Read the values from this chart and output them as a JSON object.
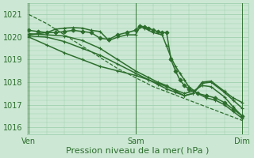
{
  "bg_color": "#cce8d4",
  "grid_color": "#99ccaa",
  "line_color": "#2d6e2d",
  "xlabel": "Pression niveau de la mer( hPa )",
  "xlabel_fontsize": 8,
  "tick_fontsize": 7,
  "yticks": [
    1016,
    1017,
    1018,
    1019,
    1020,
    1021
  ],
  "ylim": [
    1015.7,
    1021.5
  ],
  "xtick_labels": [
    "Ven",
    "Sam",
    "Dim"
  ],
  "xtick_positions": [
    0,
    48,
    96
  ],
  "xlim": [
    -1,
    99
  ],
  "vlines": [
    0,
    48,
    96
  ],
  "series": [
    {
      "x": [
        0,
        8,
        16,
        24,
        32,
        40,
        48,
        56,
        64,
        72,
        80,
        88,
        96
      ],
      "y": [
        1021.0,
        1020.6,
        1020.1,
        1019.6,
        1019.1,
        1018.6,
        1018.2,
        1017.8,
        1017.5,
        1017.2,
        1016.9,
        1016.6,
        1016.3
      ],
      "style": "--",
      "marker": null,
      "lw": 0.9
    },
    {
      "x": [
        0,
        4,
        8,
        12,
        16,
        20,
        24,
        28,
        32,
        36,
        40,
        44,
        48,
        50,
        52,
        54,
        56,
        58,
        60,
        62,
        64,
        66,
        68,
        70,
        72,
        76,
        80,
        84,
        88,
        92,
        96
      ],
      "y": [
        1020.3,
        1020.25,
        1020.2,
        1020.2,
        1020.25,
        1020.3,
        1020.25,
        1020.2,
        1019.95,
        1019.9,
        1020.1,
        1020.2,
        1020.3,
        1020.5,
        1020.45,
        1020.4,
        1020.3,
        1020.25,
        1020.2,
        1020.2,
        1019.0,
        1018.5,
        1018.1,
        1017.85,
        1017.7,
        1017.5,
        1017.4,
        1017.3,
        1017.1,
        1016.8,
        1016.5
      ],
      "style": "-",
      "marker": "D",
      "lw": 1.1,
      "ms": 2.5
    },
    {
      "x": [
        0,
        4,
        8,
        12,
        16,
        20,
        24,
        28,
        32,
        36,
        40,
        44,
        48,
        50,
        52,
        56,
        60,
        62,
        64,
        66,
        68,
        70,
        72,
        76,
        80,
        84,
        88,
        92,
        96
      ],
      "y": [
        1020.1,
        1020.15,
        1020.2,
        1020.35,
        1020.4,
        1020.42,
        1020.4,
        1020.3,
        1020.25,
        1019.85,
        1020.0,
        1020.1,
        1020.1,
        1020.45,
        1020.4,
        1020.2,
        1020.1,
        1019.6,
        1019.1,
        1018.7,
        1018.4,
        1018.1,
        1017.8,
        1017.5,
        1017.3,
        1017.2,
        1017.0,
        1016.7,
        1016.4
      ],
      "style": "-",
      "marker": "+",
      "lw": 1.1,
      "ms": 3.5
    },
    {
      "x": [
        0,
        8,
        16,
        24,
        32,
        40,
        48,
        54,
        58,
        62,
        66,
        70,
        74,
        78,
        82,
        88,
        92,
        96
      ],
      "y": [
        1020.15,
        1020.1,
        1020.05,
        1019.85,
        1019.5,
        1019.0,
        1018.5,
        1018.2,
        1018.0,
        1017.85,
        1017.6,
        1017.4,
        1017.5,
        1018.0,
        1018.05,
        1017.6,
        1017.3,
        1017.1
      ],
      "style": "-",
      "marker": "+",
      "lw": 1.1,
      "ms": 3.5
    },
    {
      "x": [
        0,
        8,
        16,
        24,
        32,
        40,
        48,
        54,
        58,
        62,
        66,
        70,
        74,
        78,
        82,
        88,
        92,
        96
      ],
      "y": [
        1020.05,
        1020.0,
        1019.8,
        1019.5,
        1019.2,
        1018.8,
        1018.4,
        1018.1,
        1017.9,
        1017.7,
        1017.55,
        1017.4,
        1017.5,
        1017.95,
        1018.0,
        1017.55,
        1017.2,
        1016.85
      ],
      "style": "-",
      "marker": "+",
      "lw": 1.1,
      "ms": 3.5
    },
    {
      "x": [
        0,
        8,
        16,
        24,
        32,
        40,
        48,
        54,
        58,
        62,
        66,
        70,
        74,
        78,
        82,
        88,
        92,
        96
      ],
      "y": [
        1020.0,
        1019.65,
        1019.3,
        1019.0,
        1018.7,
        1018.5,
        1018.3,
        1018.1,
        1017.95,
        1017.8,
        1017.65,
        1017.5,
        1017.6,
        1017.85,
        1017.8,
        1017.35,
        1016.9,
        1016.5
      ],
      "style": "-",
      "marker": "+",
      "lw": 1.1,
      "ms": 3.5
    }
  ]
}
